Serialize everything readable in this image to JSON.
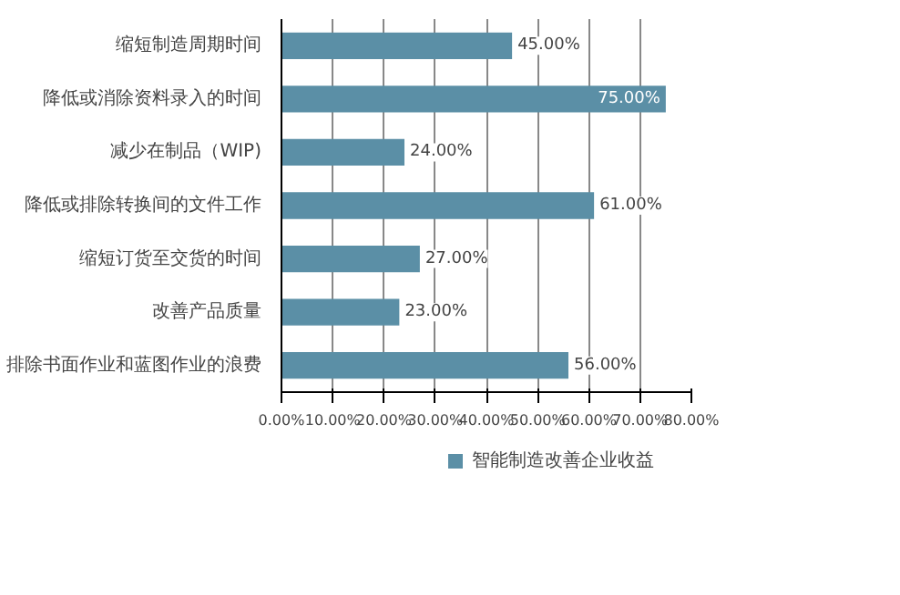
{
  "chart_data": {
    "type": "bar",
    "orientation": "horizontal",
    "categories": [
      "缩短制造周期时间",
      "降低或消除资料录入的时间",
      "减少在制品（WIP)",
      "降低或排除转换间的文件工作",
      "缩短订货至交货的时间",
      "改善产品质量",
      "排除书面作业和蓝图作业的浪费"
    ],
    "series": [
      {
        "name": "智能制造改善企业收益",
        "color": "#5b8fa6",
        "values": [
          45,
          75,
          24,
          61,
          27,
          23,
          56
        ],
        "value_labels": [
          "45.00%",
          "75.00%",
          "24.00%",
          "61.00%",
          "27.00%",
          "23.00%",
          "56.00%"
        ]
      }
    ],
    "xlim": [
      0,
      80
    ],
    "xticks": [
      {
        "value": 0,
        "label": "0.00%"
      },
      {
        "value": 10,
        "label": "10.00%"
      },
      {
        "value": 20,
        "label": "20.00%"
      },
      {
        "value": 30,
        "label": "30.00%"
      },
      {
        "value": 40,
        "label": "40.00%"
      },
      {
        "value": 50,
        "label": "50.00%"
      },
      {
        "value": 60,
        "label": "60.00%"
      },
      {
        "value": 70,
        "label": "70.00%"
      },
      {
        "value": 80,
        "label": "80.00%"
      }
    ],
    "grid": "x",
    "legend": "bottom"
  }
}
